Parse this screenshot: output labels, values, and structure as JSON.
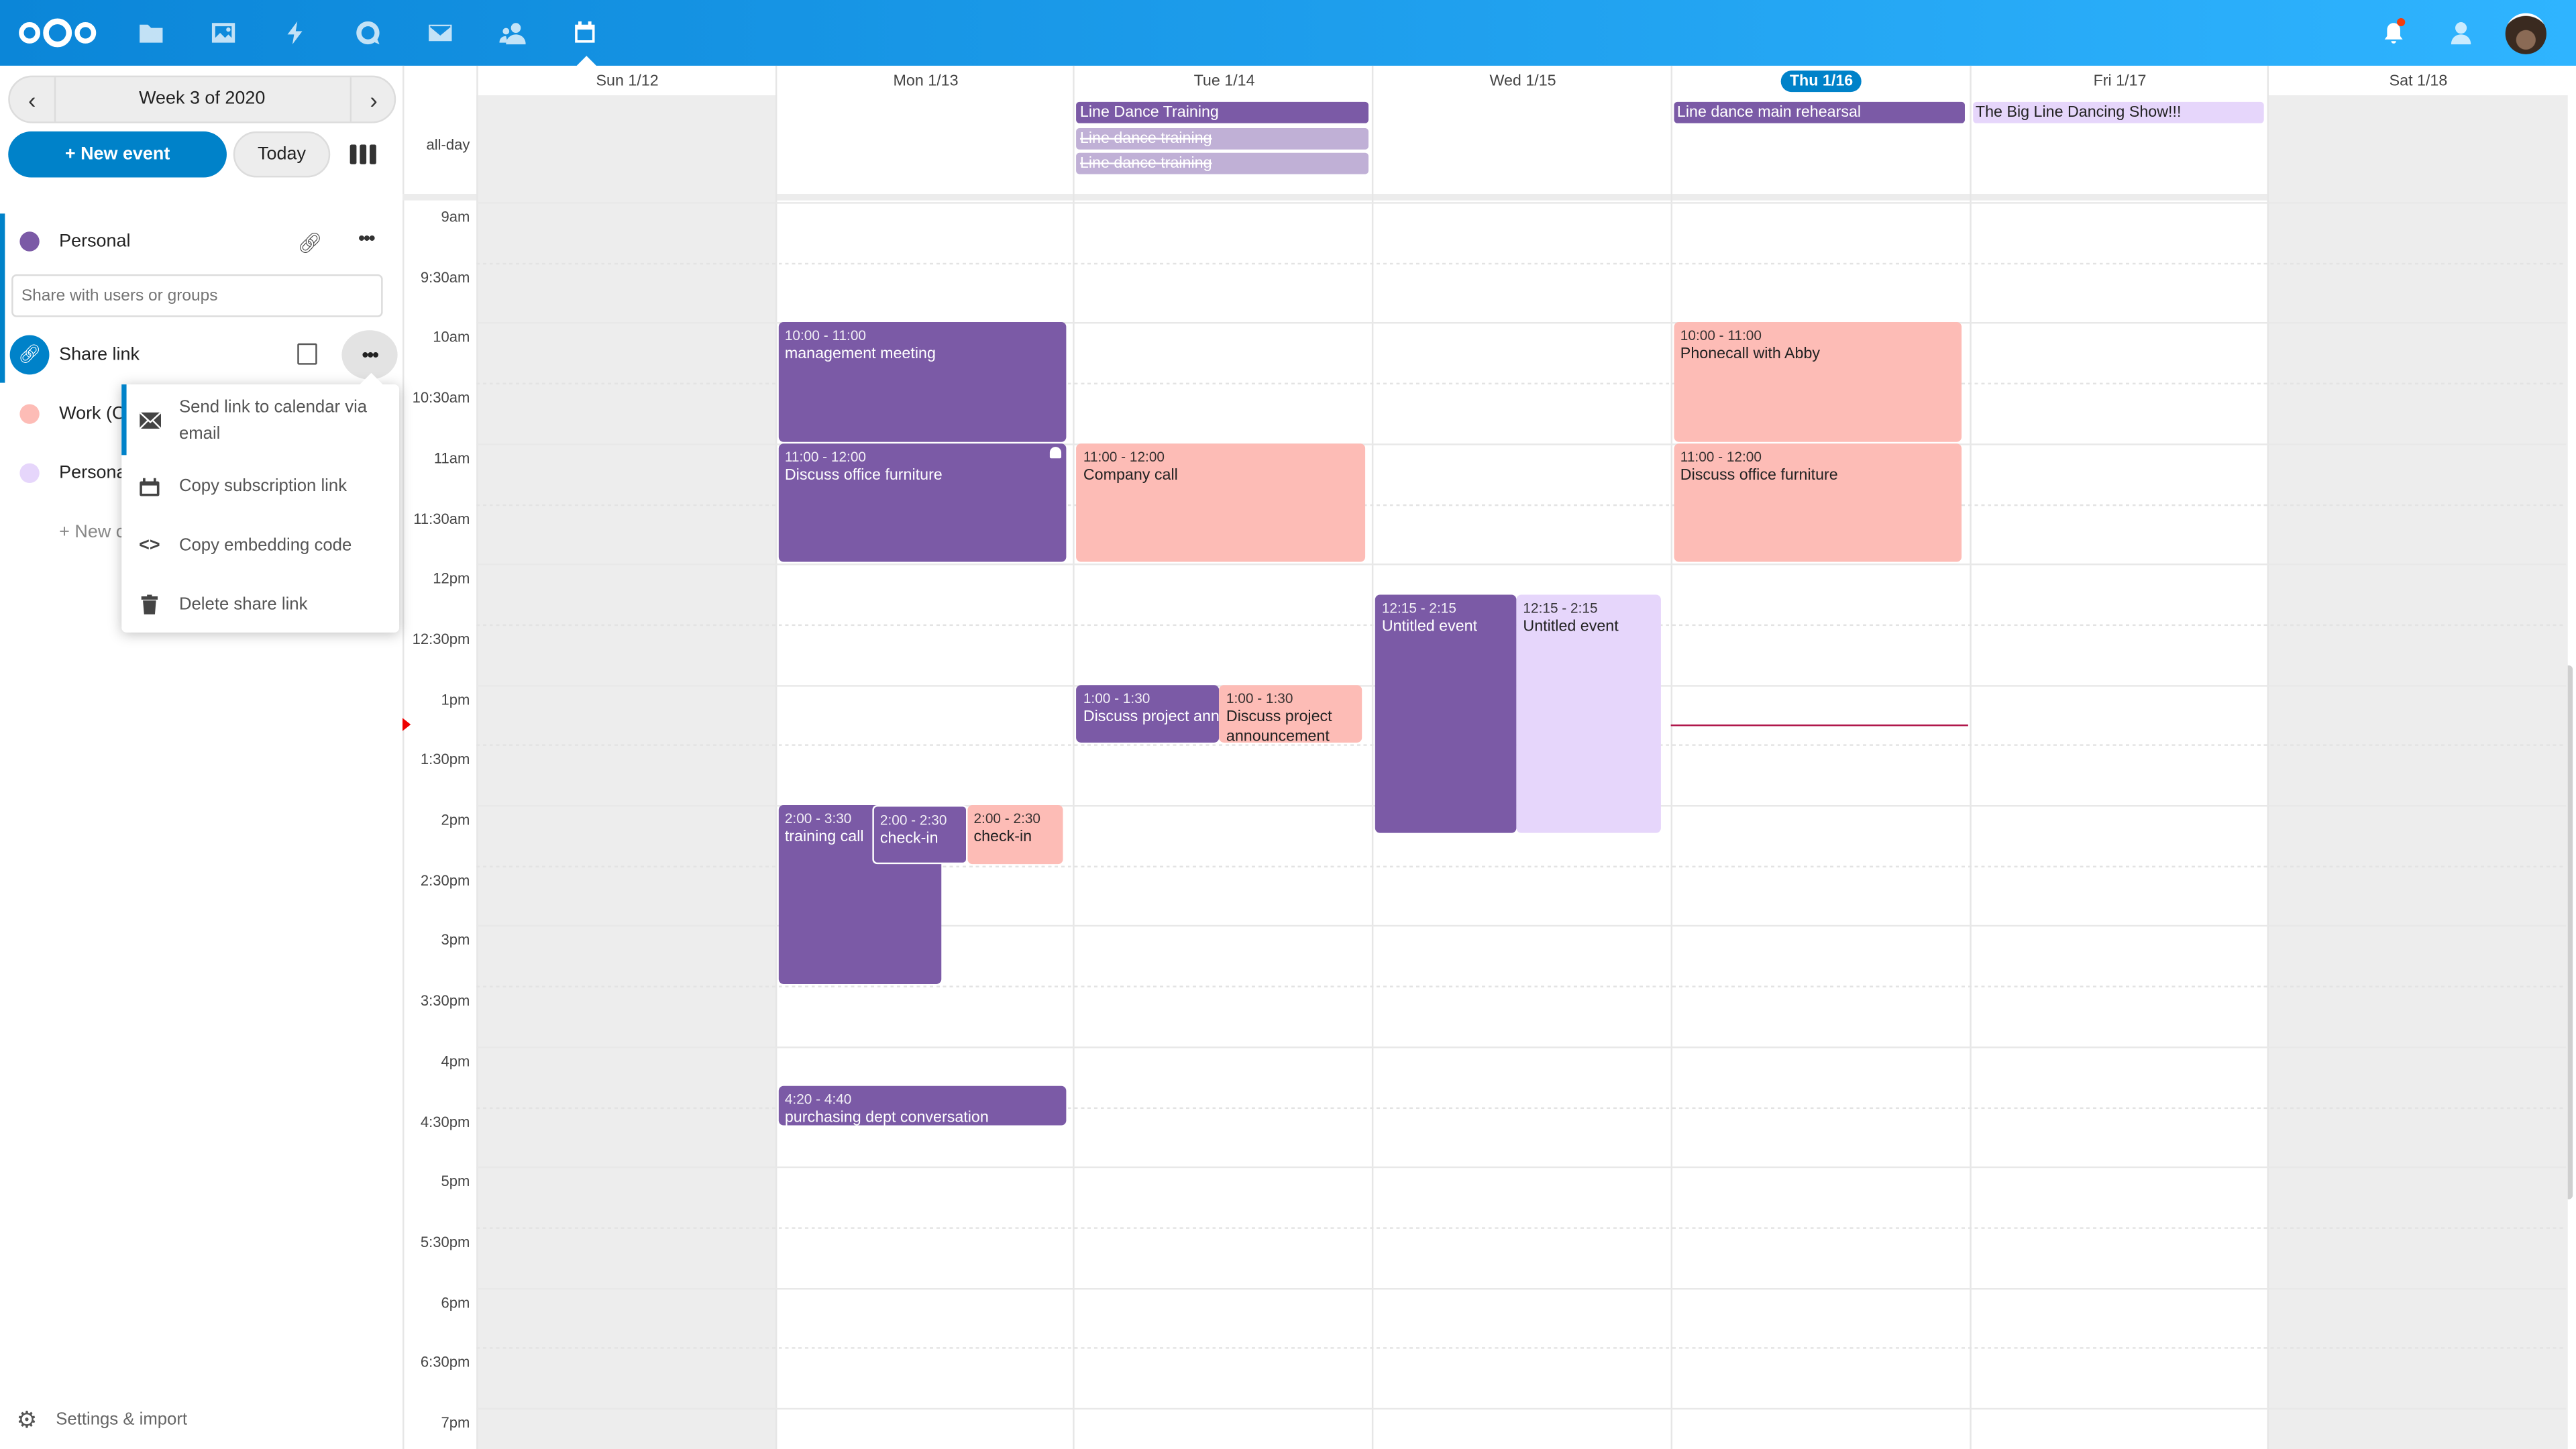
{
  "colors": {
    "accent": "#0082c9",
    "personal": "#7b5aa6",
    "work": "#fdbcb6",
    "personal2": "#e6d6fb",
    "strike": "#c0b0d6",
    "nowline": "#b0174b"
  },
  "header": {
    "nav_icons": [
      "files-icon",
      "photos-icon",
      "activity-icon",
      "talk-icon",
      "mail-icon",
      "contacts-icon",
      "calendar-icon"
    ],
    "right_icons": [
      "notifications-icon",
      "contacts-menu-icon",
      "avatar"
    ]
  },
  "sidebar": {
    "week_label": "Week 3 of 2020",
    "new_event": "+ New event",
    "today": "Today",
    "calendars": [
      {
        "name": "Personal",
        "color": "#7b5aa6"
      },
      {
        "name": "Work (C",
        "color": "#fdbcb6"
      },
      {
        "name": "Persona",
        "color": "#e6d6fb"
      }
    ],
    "share_placeholder": "Share with users or groups",
    "share_link": "Share link",
    "new_calendar": "+ New c",
    "settings": "Settings & import",
    "menu": [
      {
        "label": "Send link to calendar via email",
        "icon": "mail-icon"
      },
      {
        "label": "Copy subscription link",
        "icon": "calendar-icon"
      },
      {
        "label": "Copy embedding code",
        "icon": "code-icon"
      },
      {
        "label": "Delete share link",
        "icon": "trash-icon"
      }
    ]
  },
  "calendar": {
    "allday_label": "all-day",
    "days": [
      "Sun 1/12",
      "Mon 1/13",
      "Tue 1/14",
      "Wed 1/15",
      "Thu 1/16",
      "Fri 1/17",
      "Sat 1/18"
    ],
    "today_index": 4,
    "hours": [
      "9am",
      "9:30am",
      "10am",
      "10:30am",
      "11am",
      "11:30am",
      "12pm",
      "12:30pm",
      "1pm",
      "1:30pm",
      "2pm",
      "2:30pm",
      "3pm",
      "3:30pm",
      "4pm",
      "4:30pm",
      "5pm",
      "5:30pm",
      "6pm",
      "6:30pm",
      "7pm"
    ],
    "now_time": "1:20pm",
    "allday_events": [
      {
        "day": 2,
        "title": "Line Dance Training",
        "cal": "personal",
        "strike": false
      },
      {
        "day": 2,
        "title": "Line dance training",
        "cal": "strike",
        "strike": true
      },
      {
        "day": 2,
        "title": "Line dance training",
        "cal": "strike",
        "strike": true
      },
      {
        "day": 4,
        "title": "Line dance main rehearsal",
        "cal": "personal",
        "strike": false
      },
      {
        "day": 5,
        "title": "The Big Line Dancing Show!!!",
        "cal": "personal2",
        "strike": false
      }
    ],
    "events": [
      {
        "day": 1,
        "start": "10:00",
        "end": "11:00",
        "time": "10:00 - 11:00",
        "title": "management meeting",
        "cal": "personal"
      },
      {
        "day": 1,
        "start": "11:00",
        "end": "12:00",
        "time": "11:00 - 12:00",
        "title": "Discuss office furniture",
        "cal": "personal",
        "alarm": true
      },
      {
        "day": 1,
        "start": "14:00",
        "end": "15:30",
        "time": "2:00 - 3:30",
        "title": "training call",
        "cal": "personal"
      },
      {
        "day": 1,
        "start": "14:00",
        "end": "14:30",
        "time": "2:00 - 2:30",
        "title": "check-in",
        "cal": "personal"
      },
      {
        "day": 1,
        "start": "14:00",
        "end": "14:30",
        "time": "2:00 - 2:30",
        "title": "check-in",
        "cal": "work"
      },
      {
        "day": 1,
        "start": "16:20",
        "end": "16:40",
        "time": "4:20 - 4:40",
        "title": "purchasing dept conversation",
        "cal": "personal"
      },
      {
        "day": 2,
        "start": "11:00",
        "end": "12:00",
        "time": "11:00 - 12:00",
        "title": "Company call",
        "cal": "work"
      },
      {
        "day": 2,
        "start": "13:00",
        "end": "13:30",
        "time": "1:00 - 1:30",
        "title": "Discuss project announcement",
        "cal": "personal"
      },
      {
        "day": 2,
        "start": "13:00",
        "end": "13:30",
        "time": "1:00 - 1:30",
        "title": "Discuss project announcement",
        "cal": "work"
      },
      {
        "day": 3,
        "start": "12:15",
        "end": "14:15",
        "time": "12:15 - 2:15",
        "title": "Untitled event",
        "cal": "personal"
      },
      {
        "day": 3,
        "start": "12:15",
        "end": "14:15",
        "time": "12:15 - 2:15",
        "title": "Untitled event",
        "cal": "personal2"
      },
      {
        "day": 4,
        "start": "10:00",
        "end": "11:00",
        "time": "10:00 - 11:00",
        "title": "Phonecall with Abby",
        "cal": "work"
      },
      {
        "day": 4,
        "start": "11:00",
        "end": "12:00",
        "time": "11:00 - 12:00",
        "title": "Discuss office furniture",
        "cal": "work"
      }
    ]
  }
}
